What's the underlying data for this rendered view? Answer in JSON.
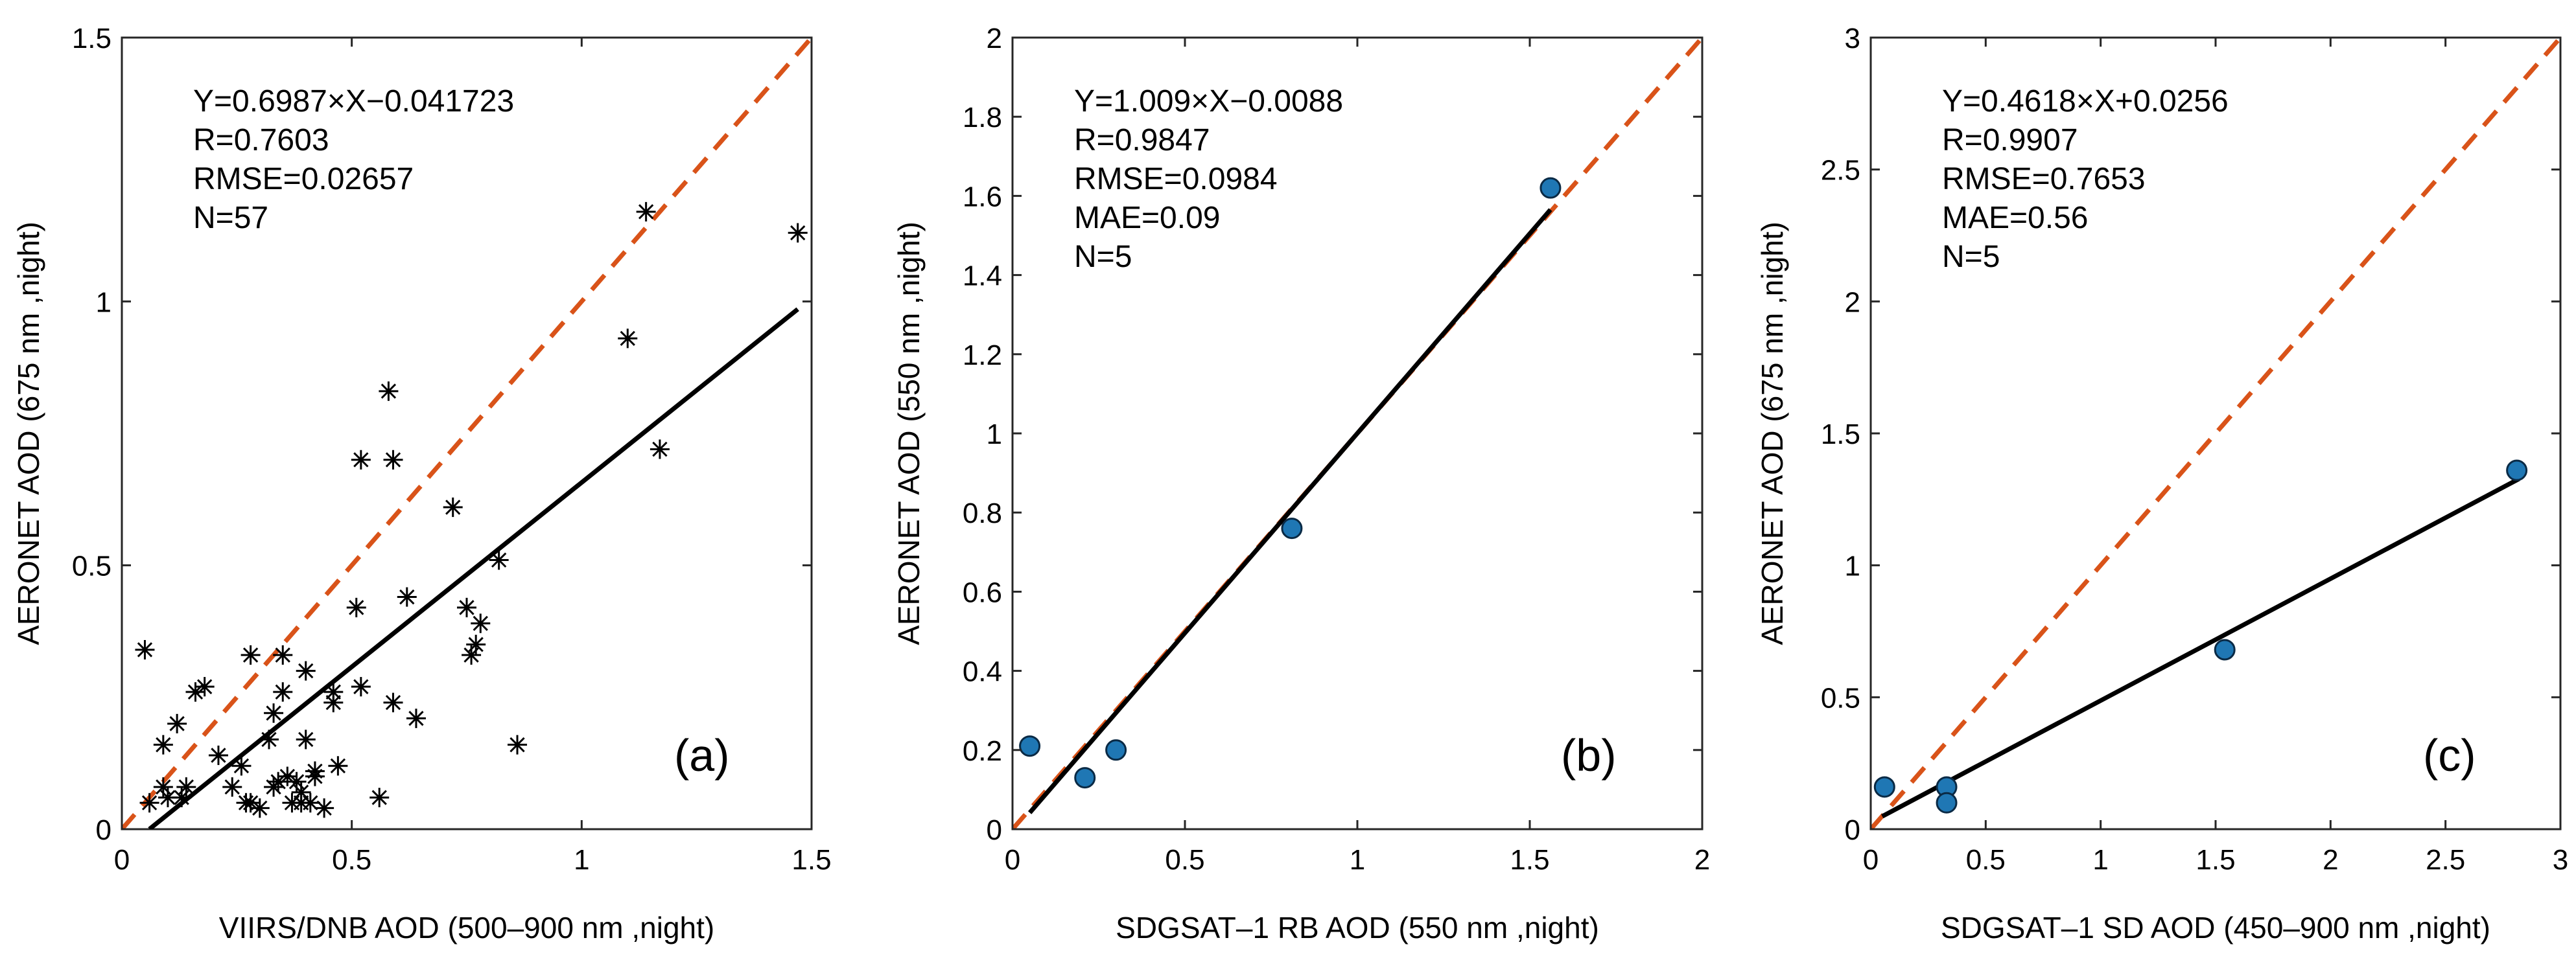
{
  "chart_data": [
    {
      "type": "scatter",
      "panel_label": "(a)",
      "xlabel": "VIIRS/DNB AOD (500–900 nm ,night)",
      "ylabel": "AERONET AOD (675 nm ,night)",
      "xlim": [
        0,
        1.5
      ],
      "ylim": [
        0,
        1.5
      ],
      "xticks": [
        0,
        0.5,
        1,
        1.5
      ],
      "yticks": [
        0,
        0.5,
        1,
        1.5
      ],
      "xticklabels": [
        "0",
        "0.5",
        "1",
        "1.5"
      ],
      "yticklabels": [
        "0",
        "0.5",
        "1",
        "1.5"
      ],
      "stats": [
        "Y=0.6987×X−0.041723",
        "R=0.7603",
        "RMSE=0.02657",
        "N=57"
      ],
      "marker": "asterisk",
      "marker_color": "#000000",
      "fit": {
        "slope": 0.6987,
        "intercept": -0.041723,
        "x_range": [
          0.06,
          1.47
        ]
      },
      "points": [
        [
          0.05,
          0.34
        ],
        [
          0.06,
          0.05
        ],
        [
          0.09,
          0.16
        ],
        [
          0.09,
          0.08
        ],
        [
          0.1,
          0.06
        ],
        [
          0.12,
          0.2
        ],
        [
          0.13,
          0.06
        ],
        [
          0.14,
          0.08
        ],
        [
          0.16,
          0.26
        ],
        [
          0.18,
          0.27
        ],
        [
          0.21,
          0.14
        ],
        [
          0.24,
          0.08
        ],
        [
          0.26,
          0.12
        ],
        [
          0.28,
          0.05
        ],
        [
          0.28,
          0.33
        ],
        [
          0.3,
          0.04
        ],
        [
          0.32,
          0.17
        ],
        [
          0.33,
          0.22
        ],
        [
          0.33,
          0.08
        ],
        [
          0.34,
          0.09
        ],
        [
          0.35,
          0.33
        ],
        [
          0.35,
          0.26
        ],
        [
          0.36,
          0.1
        ],
        [
          0.37,
          0.05
        ],
        [
          0.38,
          0.09
        ],
        [
          0.39,
          0.07
        ],
        [
          0.39,
          0.05
        ],
        [
          0.4,
          0.3
        ],
        [
          0.4,
          0.17
        ],
        [
          0.41,
          0.05
        ],
        [
          0.42,
          0.1
        ],
        [
          0.42,
          0.11
        ],
        [
          0.44,
          0.04
        ],
        [
          0.46,
          0.26
        ],
        [
          0.46,
          0.24
        ],
        [
          0.47,
          0.12
        ],
        [
          0.51,
          0.42
        ],
        [
          0.52,
          0.7
        ],
        [
          0.52,
          0.27
        ],
        [
          0.56,
          0.06
        ],
        [
          0.58,
          0.83
        ],
        [
          0.59,
          0.7
        ],
        [
          0.59,
          0.24
        ],
        [
          0.62,
          0.44
        ],
        [
          0.64,
          0.21
        ],
        [
          0.72,
          0.61
        ],
        [
          0.75,
          0.42
        ],
        [
          0.76,
          0.33
        ],
        [
          0.77,
          0.35
        ],
        [
          0.78,
          0.39
        ],
        [
          0.82,
          0.51
        ],
        [
          0.86,
          0.16
        ],
        [
          1.1,
          0.93
        ],
        [
          1.14,
          1.17
        ],
        [
          1.17,
          0.72
        ],
        [
          1.47,
          1.13
        ],
        [
          0.27,
          0.05
        ]
      ]
    },
    {
      "type": "scatter",
      "panel_label": "(b)",
      "xlabel": "SDGSAT–1 RB AOD (550 nm ,night)",
      "ylabel": "AERONET AOD (550 nm ,night)",
      "xlim": [
        0,
        2
      ],
      "ylim": [
        0,
        2
      ],
      "xticks": [
        0,
        0.5,
        1,
        1.5,
        2
      ],
      "yticks": [
        0,
        0.2,
        0.4,
        0.6,
        0.8,
        1,
        1.2,
        1.4,
        1.6,
        1.8,
        2
      ],
      "xticklabels": [
        "0",
        "0.5",
        "1",
        "1.5",
        "2"
      ],
      "yticklabels": [
        "0",
        "0.2",
        "0.4",
        "0.6",
        "0.8",
        "1",
        "1.2",
        "1.4",
        "1.6",
        "1.8",
        "2"
      ],
      "stats": [
        "Y=1.009×X−0.0088",
        "R=0.9847",
        "RMSE=0.0984",
        "MAE=0.09",
        "N=5"
      ],
      "marker": "circle",
      "marker_color": "#1f77b4",
      "fit": {
        "slope": 1.009,
        "intercept": -0.0088,
        "x_range": [
          0.05,
          1.56
        ]
      },
      "points": [
        [
          0.05,
          0.21
        ],
        [
          0.21,
          0.13
        ],
        [
          0.3,
          0.2
        ],
        [
          0.81,
          0.76
        ],
        [
          1.56,
          1.62
        ]
      ]
    },
    {
      "type": "scatter",
      "panel_label": "(c)",
      "xlabel": "SDGSAT–1 SD AOD (450–900 nm ,night)",
      "ylabel": "AERONET AOD (675 nm ,night)",
      "xlim": [
        0,
        3
      ],
      "ylim": [
        0,
        3
      ],
      "xticks": [
        0,
        0.5,
        1,
        1.5,
        2,
        2.5,
        3
      ],
      "yticks": [
        0,
        0.5,
        1,
        1.5,
        2,
        2.5,
        3
      ],
      "xticklabels": [
        "0",
        "0.5",
        "1",
        "1.5",
        "2",
        "2.5",
        "3"
      ],
      "yticklabels": [
        "0",
        "0.5",
        "1",
        "1.5",
        "2",
        "2.5",
        "3"
      ],
      "stats": [
        "Y=0.4618×X+0.0256",
        "R=0.9907",
        "RMSE=0.7653",
        "MAE=0.56",
        "N=5"
      ],
      "marker": "circle",
      "marker_color": "#1f77b4",
      "fit": {
        "slope": 0.4618,
        "intercept": 0.0256,
        "x_range": [
          0.05,
          2.82
        ]
      },
      "points": [
        [
          0.06,
          0.16
        ],
        [
          0.33,
          0.16
        ],
        [
          0.33,
          0.1
        ],
        [
          1.54,
          0.68
        ],
        [
          2.81,
          1.36
        ]
      ]
    }
  ],
  "style": {
    "one_to_one_color": "#d95319",
    "fit_color": "#000000",
    "axis_color": "#262626"
  }
}
